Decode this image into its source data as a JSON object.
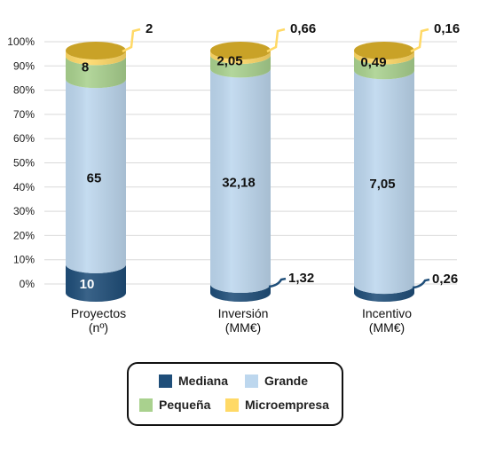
{
  "chart_data": {
    "type": "bar",
    "stacked": "percent",
    "categories": [
      {
        "line1": "Proyectos",
        "line2": "(nº)"
      },
      {
        "line1": "Inversión",
        "line2": "(MM€)"
      },
      {
        "line1": "Incentivo",
        "line2": "(MM€)"
      }
    ],
    "yticks": [
      "0%",
      "10%",
      "20%",
      "30%",
      "40%",
      "50%",
      "60%",
      "70%",
      "80%",
      "90%",
      "100%"
    ],
    "ylim": [
      0,
      100
    ],
    "grid": true,
    "legend_position": "bottom",
    "series": [
      {
        "name": "Mediana",
        "color": "#1f4e79",
        "values": [
          10,
          1.32,
          0.26
        ],
        "labels": [
          "10",
          "1,32",
          "0,26"
        ]
      },
      {
        "name": "Grande",
        "color": "#bdd7ee",
        "values": [
          65,
          32.18,
          7.05
        ],
        "labels": [
          "65",
          "32,18",
          "7,05"
        ]
      },
      {
        "name": "Pequeña",
        "color": "#a9d18e",
        "values": [
          8,
          2.05,
          0.49
        ],
        "labels": [
          "8",
          "2,05",
          "0,49"
        ]
      },
      {
        "name": "Microempresa",
        "color": "#ffd966",
        "values": [
          2,
          0.66,
          0.16
        ],
        "labels": [
          "2",
          "0,66",
          "0,16"
        ]
      }
    ]
  },
  "legend": {
    "mediana": "Mediana",
    "grande": "Grande",
    "pequena": "Pequeña",
    "micro": "Microempresa"
  }
}
